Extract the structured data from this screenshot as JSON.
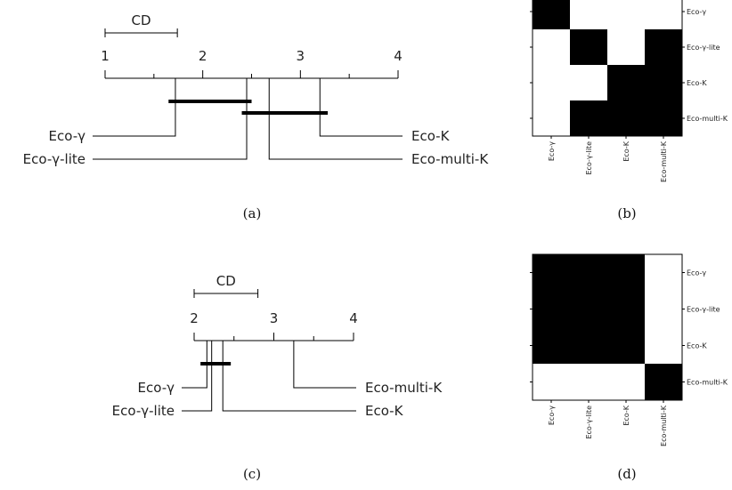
{
  "chart_data": [
    {
      "id": "a",
      "type": "critical-difference",
      "caption": "(a)",
      "cd_label": "CD",
      "cd_value": 0.74,
      "scale": [
        1,
        4
      ],
      "ticks": [
        "1",
        "2",
        "3",
        "4"
      ],
      "methods": [
        {
          "name": "Eco-γ",
          "rank": 1.72,
          "side": "left"
        },
        {
          "name": "Eco-γ-lite",
          "rank": 2.45,
          "side": "left"
        },
        {
          "name": "Eco-K",
          "rank": 3.2,
          "side": "right"
        },
        {
          "name": "Eco-multi-K",
          "rank": 2.68,
          "side": "right"
        }
      ],
      "cliques": [
        [
          1.65,
          2.5
        ],
        [
          2.4,
          3.28
        ]
      ]
    },
    {
      "id": "b",
      "type": "heatmap",
      "caption": "(b)",
      "labels": [
        "Eco-γ",
        "Eco-γ-lite",
        "Eco-K",
        "Eco-multi-K"
      ],
      "matrix": [
        [
          1,
          0,
          0,
          0
        ],
        [
          0,
          1,
          0,
          1
        ],
        [
          0,
          0,
          1,
          1
        ],
        [
          0,
          1,
          1,
          1
        ]
      ],
      "colors": {
        "on": "#000000",
        "off": "#ffffff"
      }
    },
    {
      "id": "c",
      "type": "critical-difference",
      "caption": "(c)",
      "cd_label": "CD",
      "cd_value": 0.8,
      "scale": [
        2,
        4
      ],
      "ticks": [
        "2",
        "3",
        "4"
      ],
      "methods": [
        {
          "name": "Eco-γ",
          "rank": 2.16,
          "side": "left"
        },
        {
          "name": "Eco-γ-lite",
          "rank": 2.22,
          "side": "left"
        },
        {
          "name": "Eco-multi-K",
          "rank": 3.25,
          "side": "right"
        },
        {
          "name": "Eco-K",
          "rank": 2.36,
          "side": "right"
        }
      ],
      "cliques": [
        [
          2.08,
          2.46
        ]
      ]
    },
    {
      "id": "d",
      "type": "heatmap",
      "caption": "(d)",
      "labels": [
        "Eco-γ",
        "Eco-γ-lite",
        "Eco-K",
        "Eco-multi-K"
      ],
      "matrix": [
        [
          1,
          1,
          1,
          0
        ],
        [
          1,
          1,
          1,
          0
        ],
        [
          1,
          1,
          1,
          0
        ],
        [
          0,
          0,
          0,
          1
        ]
      ],
      "colors": {
        "on": "#000000",
        "off": "#ffffff"
      }
    }
  ]
}
